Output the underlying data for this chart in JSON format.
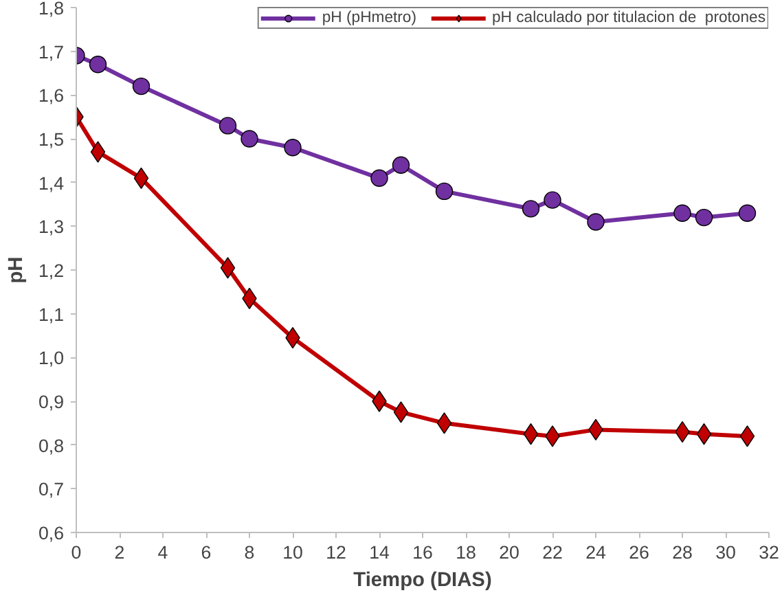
{
  "chart_data": {
    "type": "line",
    "xlabel": "Tiempo (DIAS)",
    "ylabel": "pH",
    "x": [
      0,
      1,
      3,
      7,
      8,
      10,
      14,
      15,
      17,
      21,
      22,
      24,
      28,
      29,
      31
    ],
    "series": [
      {
        "name": "pH (pHmetro)",
        "color": "#7030a0",
        "marker": "circle",
        "values": [
          1.69,
          1.67,
          1.62,
          1.53,
          1.5,
          1.48,
          1.41,
          1.44,
          1.38,
          1.34,
          1.36,
          1.31,
          1.33,
          1.32,
          1.33
        ]
      },
      {
        "name": "pH calculado por titulacion de  protones",
        "color": "#c00000",
        "marker": "diamond",
        "values": [
          1.55,
          1.47,
          1.41,
          1.205,
          1.135,
          1.045,
          0.9,
          0.875,
          0.85,
          0.825,
          0.82,
          0.835,
          0.83,
          0.825,
          0.82
        ]
      }
    ],
    "xlim": [
      0,
      32
    ],
    "xticks": [
      0,
      2,
      4,
      6,
      8,
      10,
      12,
      14,
      16,
      18,
      20,
      22,
      24,
      26,
      28,
      30,
      32
    ],
    "ylim": [
      0.6,
      1.8
    ],
    "yticks": [
      {
        "value": 0.6,
        "label": "0,6"
      },
      {
        "value": 0.7,
        "label": "0,7"
      },
      {
        "value": 0.8,
        "label": "0,8"
      },
      {
        "value": 0.9,
        "label": "0,9"
      },
      {
        "value": 1.0,
        "label": "1,0"
      },
      {
        "value": 1.1,
        "label": "1,1"
      },
      {
        "value": 1.2,
        "label": "1,2"
      },
      {
        "value": 1.3,
        "label": "1,3"
      },
      {
        "value": 1.4,
        "label": "1,4"
      },
      {
        "value": 1.5,
        "label": "1,5"
      },
      {
        "value": 1.6,
        "label": "1,6"
      },
      {
        "value": 1.7,
        "label": "1,7"
      },
      {
        "value": 1.8,
        "label": "1,8"
      }
    ],
    "grid": false,
    "legend": "top",
    "line_style": "solid"
  }
}
